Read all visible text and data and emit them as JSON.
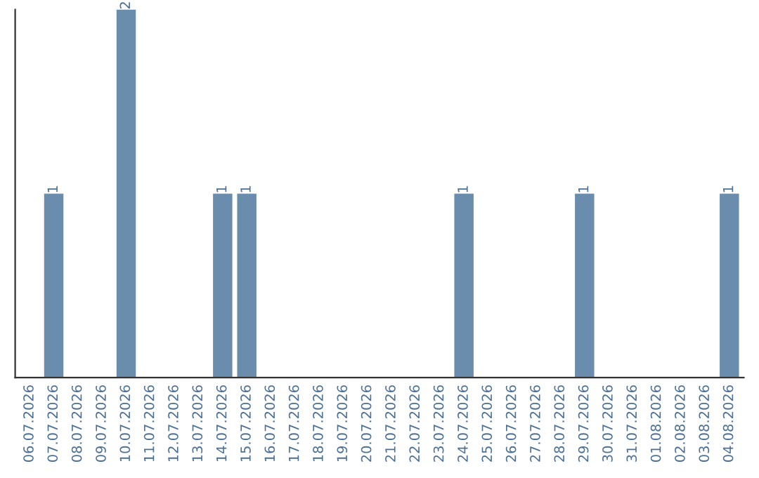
{
  "chart_data": {
    "type": "bar",
    "categories": [
      "06.07.2026",
      "07.07.2026",
      "08.07.2026",
      "09.07.2026",
      "10.07.2026",
      "11.07.2026",
      "12.07.2026",
      "13.07.2026",
      "14.07.2026",
      "15.07.2026",
      "16.07.2026",
      "17.07.2026",
      "18.07.2026",
      "19.07.2026",
      "20.07.2026",
      "21.07.2026",
      "22.07.2026",
      "23.07.2026",
      "24.07.2026",
      "25.07.2026",
      "26.07.2026",
      "27.07.2026",
      "28.07.2026",
      "29.07.2026",
      "30.07.2026",
      "31.07.2026",
      "01.08.2026",
      "02.08.2026",
      "03.08.2026",
      "04.08.2026"
    ],
    "values": [
      0,
      1,
      0,
      0,
      2,
      0,
      0,
      0,
      1,
      1,
      0,
      0,
      0,
      0,
      0,
      0,
      0,
      0,
      1,
      0,
      0,
      0,
      0,
      1,
      0,
      0,
      0,
      0,
      0,
      1
    ],
    "value_labels": [
      null,
      "1",
      null,
      null,
      "2",
      null,
      null,
      null,
      "1",
      "1",
      null,
      null,
      null,
      null,
      null,
      null,
      null,
      null,
      "1",
      null,
      null,
      null,
      null,
      "1",
      null,
      null,
      null,
      null,
      null,
      "1"
    ],
    "color": "#6a8cad",
    "grid": false,
    "legend": false,
    "tick_labels": "x"
  }
}
